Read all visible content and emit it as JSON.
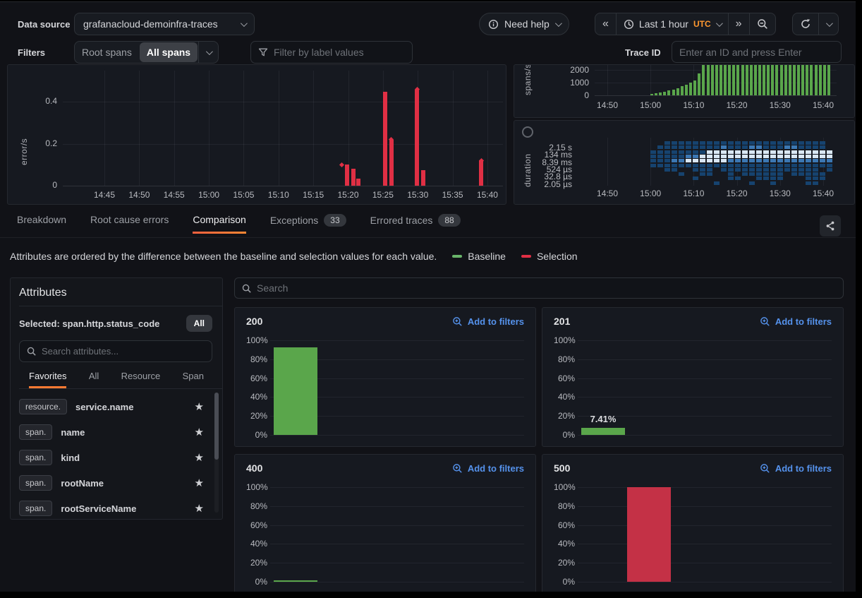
{
  "header": {
    "datasource_label": "Data source",
    "datasource_value": "grafanacloud-demoinfra-traces",
    "need_help_label": "Need help",
    "time_range_label": "Last 1 hour",
    "timezone": "UTC",
    "prev_glyph": "«",
    "next_glyph": "»"
  },
  "filters": {
    "label": "Filters",
    "scope_options": [
      "Root spans",
      "All spans"
    ],
    "scope_active": "All spans",
    "filter_placeholder": "Filter by label values",
    "trace_id_label": "Trace ID",
    "trace_id_placeholder": "Enter an ID and press Enter"
  },
  "tabs": {
    "items": [
      {
        "label": "Breakdown"
      },
      {
        "label": "Root cause errors"
      },
      {
        "label": "Comparison",
        "active": true
      },
      {
        "label": "Exceptions",
        "badge": "33"
      },
      {
        "label": "Errored traces",
        "badge": "88"
      }
    ]
  },
  "comparison_header": {
    "description": "Attributes are ordered by the difference between the baseline and selection values for each value.",
    "legend": [
      {
        "label": "Baseline",
        "color": "#69b46a"
      },
      {
        "label": "Selection",
        "color": "#e02f44"
      }
    ]
  },
  "attributes_panel": {
    "title": "Attributes",
    "selected_label": "Selected: span.http.status_code",
    "all_button": "All",
    "search_placeholder": "Search attributes...",
    "tabs": [
      "Favorites",
      "All",
      "Resource",
      "Span"
    ],
    "active_tab": "Favorites",
    "items": [
      {
        "scope": "resource.",
        "name": "service.name"
      },
      {
        "scope": "span.",
        "name": "name"
      },
      {
        "scope": "span.",
        "name": "kind"
      },
      {
        "scope": "span.",
        "name": "rootName"
      },
      {
        "scope": "span.",
        "name": "rootServiceName"
      }
    ]
  },
  "search": {
    "placeholder": "Search"
  },
  "chart_data": [
    {
      "id": "errors-rate",
      "type": "bar",
      "ylabel": "error/s",
      "yticks": [
        {
          "label": "0",
          "value": 0
        },
        {
          "label": "0.2",
          "value": 0.2
        },
        {
          "label": "0.4",
          "value": 0.4
        }
      ],
      "ylim": [
        0,
        0.55
      ],
      "xticks": [
        "14:45",
        "14:50",
        "14:55",
        "15:00",
        "15:05",
        "15:10",
        "15:15",
        "15:20",
        "15:25",
        "15:30",
        "15:35",
        "15:40"
      ],
      "color": "#e02f44",
      "points": [
        {
          "time": "15:18.8",
          "value": 0.1,
          "marker_only": true
        },
        {
          "time": "15:19.5",
          "value": 0.1
        },
        {
          "time": "15:20.5",
          "value": 0.082
        },
        {
          "time": "15:21.2",
          "value": 0.035
        },
        {
          "time": "15:25.0",
          "value": 0.45
        },
        {
          "time": "15:25.9",
          "value": 0.22,
          "marker": true
        },
        {
          "time": "15:29.6",
          "value": 0.46,
          "marker": true
        },
        {
          "time": "15:30.5",
          "value": 0.075
        },
        {
          "time": "15:38.8",
          "value": 0.12,
          "marker": true
        }
      ]
    },
    {
      "id": "spans-rate",
      "type": "bar",
      "ylabel": "spans/s",
      "yticks": [
        {
          "label": "0",
          "value": 0
        },
        {
          "label": "1000",
          "value": 1000
        },
        {
          "label": "2000",
          "value": 2000
        }
      ],
      "ylim": [
        0,
        2400
      ],
      "xticks": [
        "14:50",
        "15:00",
        "15:10",
        "15:20",
        "15:30",
        "15:40"
      ],
      "x_start": "15:00",
      "step_minutes": 1,
      "color": "#5aa64b",
      "values": [
        80,
        140,
        200,
        280,
        370,
        470,
        580,
        700,
        830,
        980,
        1150,
        1700,
        2400,
        2400,
        2400,
        2400,
        2400,
        2400,
        2400,
        2400,
        2400,
        2400,
        2400,
        2400,
        2400,
        2400,
        2400,
        2400,
        2400,
        2400,
        2400,
        2400,
        2400,
        2400,
        2400,
        2400,
        2400,
        2400,
        2400,
        2400,
        2400,
        2400
      ]
    },
    {
      "id": "duration-heatmap",
      "type": "heatmap",
      "ylabel": "duration",
      "yticks": [
        "2.15 s",
        "134 ms",
        "8.39 ms",
        "524 µs",
        "32.8 µs",
        "2.05 µs"
      ],
      "xticks": [
        "14:50",
        "15:00",
        "15:10",
        "15:20",
        "15:30",
        "15:40"
      ],
      "palette": {
        "1": "#16436f",
        "2": "#3c78b4",
        "3": "#d9e7f4"
      },
      "rows": [
        "..11111111111111111111111.",
        ".111111111211122111221111.",
        "11111111333333333333333333",
        "11111223333333333333333333",
        "11122333333222222222222222",
        "11111111111111111111111111",
        "..11..111.11111111111111.1",
        "....1..11..1.111111.11111.",
        "......1....11..1111...111.",
        ".........1....1..1....11.."
      ]
    },
    {
      "id": "status-code-comparison",
      "type": "bar",
      "yticks": [
        "100%",
        "80%",
        "60%",
        "40%",
        "20%",
        "0%"
      ],
      "ylim": [
        0,
        100
      ],
      "series_names": [
        "Baseline",
        "Selection"
      ],
      "baseline_color": "#5aa64b",
      "selection_color": "#c43146",
      "panels": [
        {
          "title": "200",
          "action": "Add to filters",
          "baseline": 92.59,
          "selection": 0,
          "value_label": ""
        },
        {
          "title": "201",
          "action": "Add to filters",
          "baseline": 7.41,
          "selection": 0,
          "value_label": "7.41%"
        },
        {
          "title": "400",
          "action": "Add to filters",
          "baseline": 0.2,
          "selection": 0,
          "value_label": ""
        },
        {
          "title": "500",
          "action": "Add to filters",
          "baseline": 0,
          "selection": 100,
          "value_label": ""
        }
      ]
    }
  ]
}
